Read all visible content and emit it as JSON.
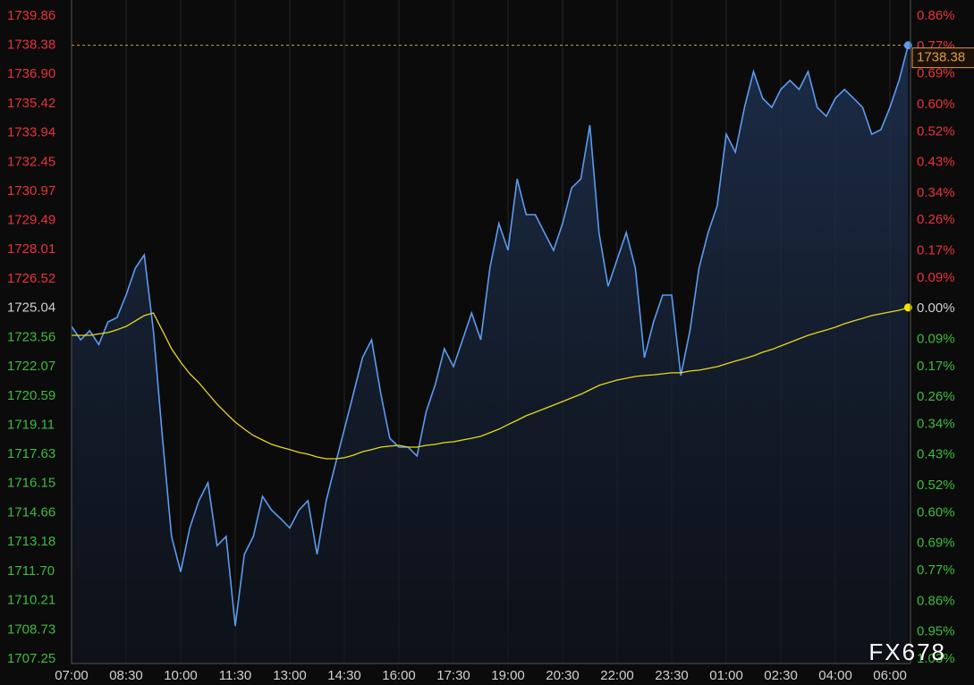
{
  "chart_data": {
    "type": "line",
    "categories": [
      "07:00",
      null,
      null,
      null,
      null,
      null,
      "08:30",
      null,
      null,
      null,
      null,
      null,
      "10:00",
      null,
      null,
      null,
      null,
      null,
      "11:30",
      null,
      null,
      null,
      null,
      null,
      "13:00",
      null,
      null,
      null,
      null,
      null,
      "14:30",
      null,
      null,
      null,
      null,
      null,
      "16:00",
      null,
      null,
      null,
      null,
      null,
      "17:30",
      null,
      null,
      null,
      null,
      null,
      "19:00",
      null,
      null,
      null,
      null,
      null,
      "20:30",
      null,
      null,
      null,
      null,
      null,
      "22:00",
      null,
      null,
      null,
      null,
      null,
      "23:30",
      null,
      null,
      null,
      null,
      null,
      "01:00",
      null,
      null,
      null,
      null,
      null,
      "02:30",
      null,
      null,
      null,
      null,
      null,
      "04:00",
      null,
      null,
      null,
      null,
      null,
      "06:00",
      null,
      null
    ],
    "series": [
      {
        "color": "#5b9bf0",
        "values": [
          1724.12,
          1723.44,
          1723.9,
          1723.2,
          1724.35,
          1724.57,
          1725.71,
          1727.07,
          1727.75,
          1723.9,
          1718.45,
          1713.47,
          1711.67,
          1713.9,
          1715.28,
          1716.19,
          1713.0,
          1713.47,
          1708.93,
          1712.56,
          1713.47,
          1715.5,
          1714.8,
          1714.37,
          1713.9,
          1714.8,
          1715.28,
          1712.56,
          1715.28,
          1717.1,
          1718.9,
          1720.72,
          1722.54,
          1723.44,
          1720.72,
          1718.45,
          1718.0,
          1718.0,
          1717.55,
          1719.8,
          1721.18,
          1722.99,
          1722.08,
          1723.44,
          1724.8,
          1723.44,
          1727.07,
          1729.34,
          1727.98,
          1731.6,
          1729.79,
          1729.79,
          1728.88,
          1727.98,
          1729.34,
          1731.15,
          1731.6,
          1734.33,
          1728.88,
          1726.16,
          1727.52,
          1728.88,
          1727.07,
          1722.54,
          1724.35,
          1725.71,
          1725.71,
          1721.63,
          1723.9,
          1727.07,
          1728.88,
          1730.24,
          1733.87,
          1732.96,
          1735.23,
          1737.05,
          1735.69,
          1735.23,
          1736.14,
          1736.6,
          1736.14,
          1737.05,
          1735.23,
          1734.78,
          1735.69,
          1736.14,
          1735.69,
          1735.23,
          1733.87,
          1734.1,
          1735.23,
          1736.6,
          1738.38
        ]
      },
      {
        "color": "#e6d81e",
        "values": [
          1723.67,
          1723.67,
          1723.67,
          1723.74,
          1723.81,
          1723.95,
          1724.12,
          1724.4,
          1724.67,
          1724.8,
          1723.9,
          1722.99,
          1722.31,
          1721.72,
          1721.27,
          1720.72,
          1720.18,
          1719.72,
          1719.27,
          1718.91,
          1718.59,
          1718.36,
          1718.14,
          1718.0,
          1717.87,
          1717.73,
          1717.64,
          1717.5,
          1717.41,
          1717.41,
          1717.46,
          1717.59,
          1717.77,
          1717.87,
          1718.0,
          1718.05,
          1718.09,
          1718.0,
          1718.0,
          1718.09,
          1718.14,
          1718.23,
          1718.27,
          1718.36,
          1718.45,
          1718.55,
          1718.73,
          1718.91,
          1719.14,
          1719.36,
          1719.59,
          1719.77,
          1719.95,
          1720.13,
          1720.31,
          1720.5,
          1720.68,
          1720.9,
          1721.13,
          1721.27,
          1721.4,
          1721.49,
          1721.58,
          1721.63,
          1721.67,
          1721.72,
          1721.77,
          1721.77,
          1721.86,
          1721.9,
          1721.99,
          1722.08,
          1722.22,
          1722.36,
          1722.49,
          1722.63,
          1722.81,
          1722.95,
          1723.13,
          1723.31,
          1723.49,
          1723.67,
          1723.81,
          1723.94,
          1724.08,
          1724.26,
          1724.4,
          1724.53,
          1724.67,
          1724.76,
          1724.85,
          1724.94,
          1725.08
        ]
      }
    ],
    "ylim": [
      1707.25,
      1739.86
    ],
    "yticks": [
      1739.86,
      1738.38,
      {
        "value": 1736.9,
        "label": "1736.90"
      },
      1735.42,
      1733.94,
      1732.45,
      1730.97,
      1729.49,
      1728.01,
      1726.52,
      1725.04,
      1723.56,
      1722.07,
      1720.59,
      1719.11,
      1717.63,
      1716.15,
      1714.66,
      1713.18,
      {
        "value": 1711.7,
        "label": "1711.70"
      },
      1710.21,
      1708.73,
      1707.25
    ],
    "y2lim": [
      -1.03,
      0.86
    ],
    "y2ticks": [
      {
        "value": 0.86,
        "label": "0.86%"
      },
      {
        "value": 0.77,
        "label": "0.77%"
      },
      {
        "value": 0.69,
        "label": "0.69%"
      },
      {
        "value": 0.6,
        "label": "0.60%"
      },
      {
        "value": 0.52,
        "label": "0.52%"
      },
      {
        "value": 0.43,
        "label": "0.43%"
      },
      {
        "value": 0.34,
        "label": "0.34%"
      },
      {
        "value": 0.26,
        "label": "0.26%"
      },
      {
        "value": 0.17,
        "label": "0.17%"
      },
      {
        "value": 0.09,
        "label": "0.09%"
      },
      {
        "value": 0,
        "label": "0.00%"
      },
      {
        "value": -0.09,
        "label": "0.09%"
      },
      {
        "value": -0.17,
        "label": "0.17%"
      },
      {
        "value": -0.26,
        "label": "0.26%"
      },
      {
        "value": -0.34,
        "label": "0.34%"
      },
      {
        "value": -0.43,
        "label": "0.43%"
      },
      {
        "value": -0.52,
        "label": "0.52%"
      },
      {
        "value": -0.6,
        "label": "0.60%"
      },
      {
        "value": -0.69,
        "label": "0.69%"
      },
      {
        "value": -0.77,
        "label": "0.77%"
      },
      {
        "value": -0.86,
        "label": "0.86%"
      },
      {
        "value": -0.95,
        "label": "0.95%"
      },
      {
        "value": -1.03,
        "label": "1.03%"
      }
    ],
    "axis_colors": {
      "up": "#e8333a",
      "down": "#3dbb3d",
      "flat": "#cfcfcf"
    },
    "last_price_color": "#e39a3c",
    "grid": "x",
    "watermark": "FX678"
  }
}
